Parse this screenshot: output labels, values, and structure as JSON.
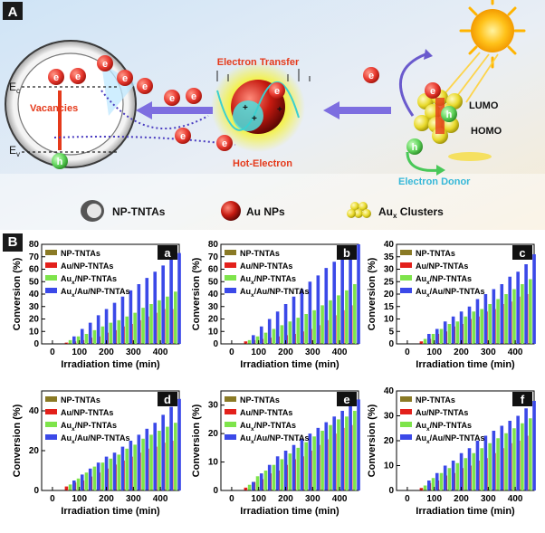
{
  "panel_a": {
    "label": "A",
    "electron_transfer": "Electron Transfer",
    "hot_electron": "Hot-Electron",
    "vacancies": "Vacancies",
    "ec": "E",
    "ec_sub": "c",
    "ev": "E",
    "ev_sub": "v",
    "lumo": "LUMO",
    "homo": "HOMO",
    "electron_donor": "Electron Donor",
    "e": "e",
    "h": "h",
    "plus": "+",
    "legend": {
      "np_tntas": "NP-TNTAs",
      "au_nps": "Au NPs",
      "aux_clusters_base": "Au",
      "aux_clusters_sub": "x",
      "aux_clusters_rest": " Clusters"
    },
    "colors": {
      "electron": "#e8392f",
      "hole": "#5fd35a",
      "arrow": "#6a5acd",
      "sun": "#ffb400"
    }
  },
  "panel_b": {
    "label": "B"
  },
  "legend_names": [
    {
      "base": "NP-TNTAs",
      "sub": "",
      "rest": ""
    },
    {
      "base": "Au/NP-TNTAs",
      "sub": "",
      "rest": ""
    },
    {
      "base": "Au",
      "sub": "x",
      "rest": "/NP-TNTAs"
    },
    {
      "base": "Au",
      "sub": "x",
      "rest": "/Au/NP-TNTAs"
    }
  ],
  "series_colors": [
    "#8a7a25",
    "#e3201b",
    "#7ee44b",
    "#3b49e8"
  ],
  "chart_data": [
    {
      "type": "bar",
      "panel": "a",
      "xlabel": "Irradiation time (min)",
      "ylabel": "Conversion (%)",
      "xlim": [
        -40,
        470
      ],
      "ylim": [
        0,
        80
      ],
      "xticks": [
        0,
        100,
        200,
        300,
        400
      ],
      "yticks": [
        0,
        10,
        20,
        30,
        40,
        50,
        60,
        70,
        80
      ],
      "x": [
        0,
        30,
        60,
        90,
        120,
        150,
        180,
        210,
        240,
        270,
        300,
        330,
        360,
        390,
        420,
        450
      ],
      "values": [
        [
          0,
          0,
          0,
          0,
          0,
          0,
          0,
          0,
          0,
          0,
          0,
          0,
          0,
          0,
          0,
          0
        ],
        [
          0,
          0,
          1,
          2,
          3,
          5,
          6,
          9,
          11,
          14,
          16,
          19,
          22,
          25,
          28,
          28
        ],
        [
          0,
          0,
          3,
          6,
          8,
          11,
          14,
          17,
          19,
          22,
          25,
          29,
          32,
          35,
          38,
          42
        ],
        [
          0,
          0,
          6,
          12,
          17,
          23,
          28,
          33,
          38,
          43,
          48,
          53,
          58,
          63,
          68,
          73
        ]
      ]
    },
    {
      "type": "bar",
      "panel": "b",
      "xlabel": "Irradiation time (min)",
      "ylabel": "Conversion (%)",
      "xlim": [
        -40,
        470
      ],
      "ylim": [
        0,
        80
      ],
      "xticks": [
        0,
        100,
        200,
        300,
        400
      ],
      "yticks": [
        0,
        10,
        20,
        30,
        40,
        50,
        60,
        70,
        80
      ],
      "x": [
        0,
        30,
        60,
        90,
        120,
        150,
        180,
        210,
        240,
        270,
        300,
        330,
        360,
        390,
        420,
        450
      ],
      "values": [
        [
          0,
          0,
          0,
          0,
          0,
          0,
          0,
          0,
          0,
          0,
          0,
          0,
          0,
          0,
          0,
          0
        ],
        [
          0,
          0,
          2,
          3,
          4,
          5,
          6,
          7,
          8,
          10,
          12,
          15,
          19,
          23,
          27,
          31
        ],
        [
          0,
          0,
          3,
          6,
          9,
          12,
          15,
          18,
          21,
          24,
          27,
          31,
          35,
          39,
          43,
          48
        ],
        [
          0,
          0,
          7,
          14,
          20,
          26,
          32,
          38,
          44,
          50,
          55,
          61,
          66,
          72,
          76,
          80
        ]
      ]
    },
    {
      "type": "bar",
      "panel": "c",
      "xlabel": "Irradiation time (min)",
      "ylabel": "Conversion (%)",
      "xlim": [
        -40,
        470
      ],
      "ylim": [
        0,
        40
      ],
      "xticks": [
        0,
        100,
        200,
        300,
        400
      ],
      "yticks": [
        0,
        5,
        10,
        15,
        20,
        25,
        30,
        35,
        40
      ],
      "x": [
        0,
        30,
        60,
        90,
        120,
        150,
        180,
        210,
        240,
        270,
        300,
        330,
        360,
        390,
        420,
        450
      ],
      "values": [
        [
          0,
          0,
          0,
          0,
          0,
          0,
          0,
          0,
          0,
          0,
          0,
          0,
          0,
          0,
          0,
          0
        ],
        [
          0,
          0,
          1,
          2,
          4,
          5,
          7,
          8,
          10,
          11,
          13,
          14,
          16,
          17,
          19,
          20
        ],
        [
          0,
          0,
          2,
          4,
          6,
          8,
          9,
          11,
          13,
          14,
          16,
          18,
          20,
          22,
          24,
          26
        ],
        [
          0,
          0,
          4,
          6,
          9,
          11,
          13,
          15,
          18,
          20,
          22,
          24,
          27,
          29,
          32,
          36
        ]
      ]
    },
    {
      "type": "bar",
      "panel": "d",
      "xlabel": "Irradiation time (min)",
      "ylabel": "Conversion (%)",
      "xlim": [
        -40,
        470
      ],
      "ylim": [
        0,
        50
      ],
      "xticks": [
        0,
        100,
        200,
        300,
        400
      ],
      "yticks": [
        0,
        20,
        40
      ],
      "x": [
        0,
        30,
        60,
        90,
        120,
        150,
        180,
        210,
        240,
        270,
        300,
        330,
        360,
        390,
        420,
        450
      ],
      "values": [
        [
          0,
          0,
          0,
          0,
          0,
          0,
          0,
          0,
          0,
          0,
          0,
          0,
          0,
          0,
          0,
          0
        ],
        [
          0,
          0,
          2,
          4,
          5,
          7,
          9,
          11,
          13,
          15,
          17,
          19,
          21,
          22,
          24,
          25
        ],
        [
          0,
          0,
          3,
          6,
          9,
          12,
          14,
          16,
          18,
          21,
          23,
          26,
          28,
          30,
          32,
          34
        ],
        [
          0,
          0,
          5,
          8,
          11,
          14,
          17,
          19,
          22,
          25,
          28,
          31,
          34,
          38,
          42,
          46
        ]
      ]
    },
    {
      "type": "bar",
      "panel": "e",
      "xlabel": "Irradiation time (min)",
      "ylabel": "Conversion (%)",
      "xlim": [
        -40,
        470
      ],
      "ylim": [
        0,
        35
      ],
      "xticks": [
        0,
        100,
        200,
        300,
        400
      ],
      "yticks": [
        0,
        10,
        20,
        30
      ],
      "x": [
        0,
        30,
        60,
        90,
        120,
        150,
        180,
        210,
        240,
        270,
        300,
        330,
        360,
        390,
        420,
        450
      ],
      "values": [
        [
          0,
          0,
          0,
          0,
          0,
          0,
          0,
          0,
          0,
          0,
          0,
          0,
          0,
          0,
          0,
          0
        ],
        [
          0,
          0,
          1,
          3,
          4,
          6,
          7,
          9,
          11,
          12,
          14,
          16,
          18,
          20,
          22,
          23
        ],
        [
          0,
          0,
          2,
          5,
          7,
          9,
          11,
          13,
          15,
          17,
          19,
          21,
          23,
          25,
          26,
          28
        ],
        [
          0,
          0,
          3,
          6,
          9,
          12,
          14,
          16,
          18,
          20,
          22,
          24,
          26,
          28,
          30,
          32
        ]
      ]
    },
    {
      "type": "bar",
      "panel": "f",
      "xlabel": "Irradiation time (min)",
      "ylabel": "Conversion (%)",
      "xlim": [
        -40,
        470
      ],
      "ylim": [
        0,
        40
      ],
      "xticks": [
        0,
        100,
        200,
        300,
        400
      ],
      "yticks": [
        0,
        10,
        20,
        30,
        40
      ],
      "x": [
        0,
        30,
        60,
        90,
        120,
        150,
        180,
        210,
        240,
        270,
        300,
        330,
        360,
        390,
        420,
        450
      ],
      "values": [
        [
          0,
          0,
          0,
          0,
          0,
          0,
          0,
          0,
          0,
          0,
          0,
          0,
          0,
          0,
          0,
          0
        ],
        [
          0,
          0,
          1,
          3,
          4,
          6,
          7,
          9,
          10,
          12,
          13,
          15,
          17,
          19,
          20,
          22
        ],
        [
          0,
          0,
          2,
          5,
          7,
          9,
          11,
          13,
          15,
          17,
          19,
          21,
          23,
          25,
          27,
          29
        ],
        [
          0,
          0,
          4,
          7,
          10,
          12,
          15,
          17,
          20,
          22,
          24,
          26,
          28,
          30,
          33,
          36
        ]
      ]
    }
  ]
}
